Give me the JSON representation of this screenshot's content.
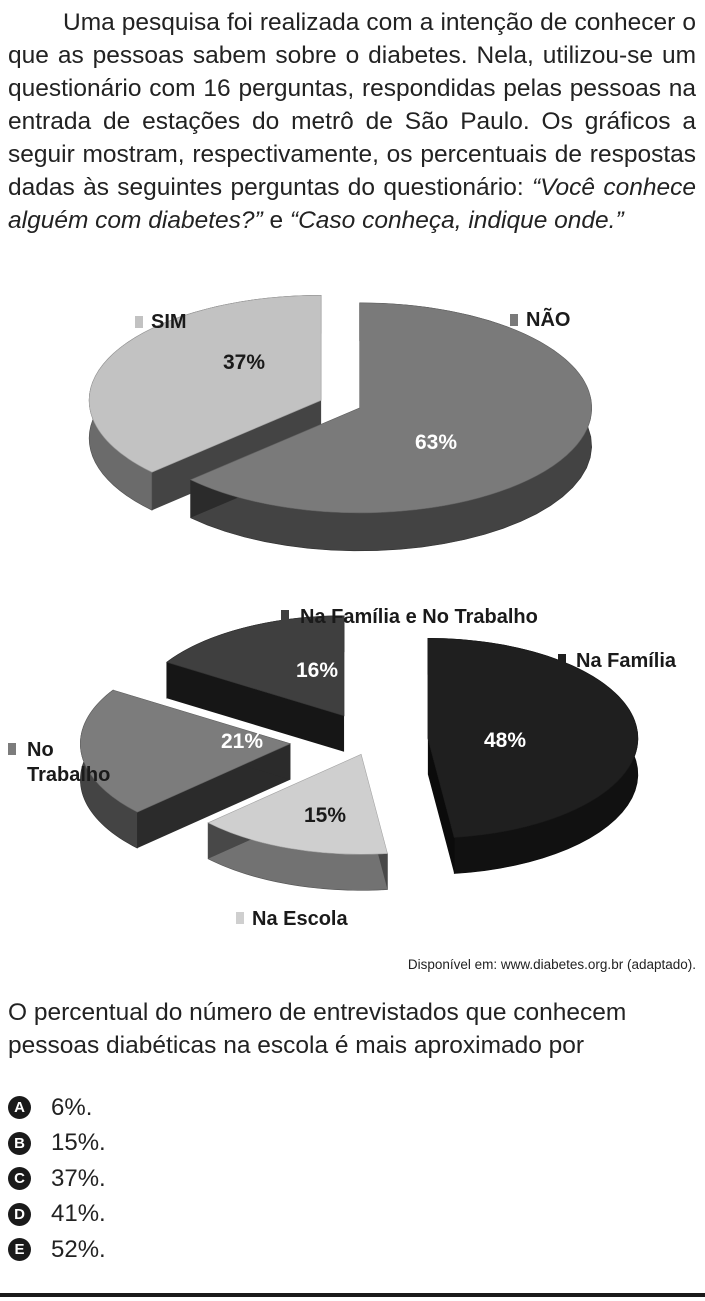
{
  "intro": {
    "text_before": "Uma pesquisa foi realizada com a intenção de conhecer o que as pessoas sabem sobre o diabetes. Nela, utilizou-se um questionário com 16 perguntas, respondidas pelas pessoas na entrada de estações do metrô de São Paulo. Os gráficos a seguir mostram, respectivamente, os percentuais de respostas dadas às seguintes perguntas do questionário: ",
    "quote_1": "“Você conhece alguém com diabetes?”",
    "connector": " e ",
    "quote_2": "“Caso conheça, indique onde.”"
  },
  "chart_data": [
    {
      "type": "pie",
      "style": "3d exploded",
      "categories": [
        "SIM",
        "NÃO"
      ],
      "values": [
        37,
        63
      ],
      "value_labels": [
        "37%",
        "63%"
      ],
      "colors": [
        "#c2c2c2",
        "#7a7a7a"
      ]
    },
    {
      "type": "pie",
      "style": "3d exploded",
      "categories": [
        "Na Família",
        "Na Escola",
        "No Trabalho",
        "Na Família e No Trabalho"
      ],
      "values": [
        48,
        15,
        21,
        16
      ],
      "value_labels": [
        "48%",
        "15%",
        "21%",
        "16%"
      ],
      "legend_lines": {
        "No Trabalho": [
          "No",
          "Trabalho"
        ]
      },
      "colors": [
        "#1f1f1f",
        "#cfcfcf",
        "#7c7c7c",
        "#3f3f3f"
      ]
    }
  ],
  "source": "Disponível em: www.diabetes.org.br (adaptado).",
  "question": "O percentual do número de entrevistados que conhecem pessoas diabéticas na escola é mais aproximado por",
  "options": [
    {
      "letter": "A",
      "text": "6%."
    },
    {
      "letter": "B",
      "text": "15%."
    },
    {
      "letter": "C",
      "text": "37%."
    },
    {
      "letter": "D",
      "text": "41%."
    },
    {
      "letter": "E",
      "text": "52%."
    }
  ]
}
